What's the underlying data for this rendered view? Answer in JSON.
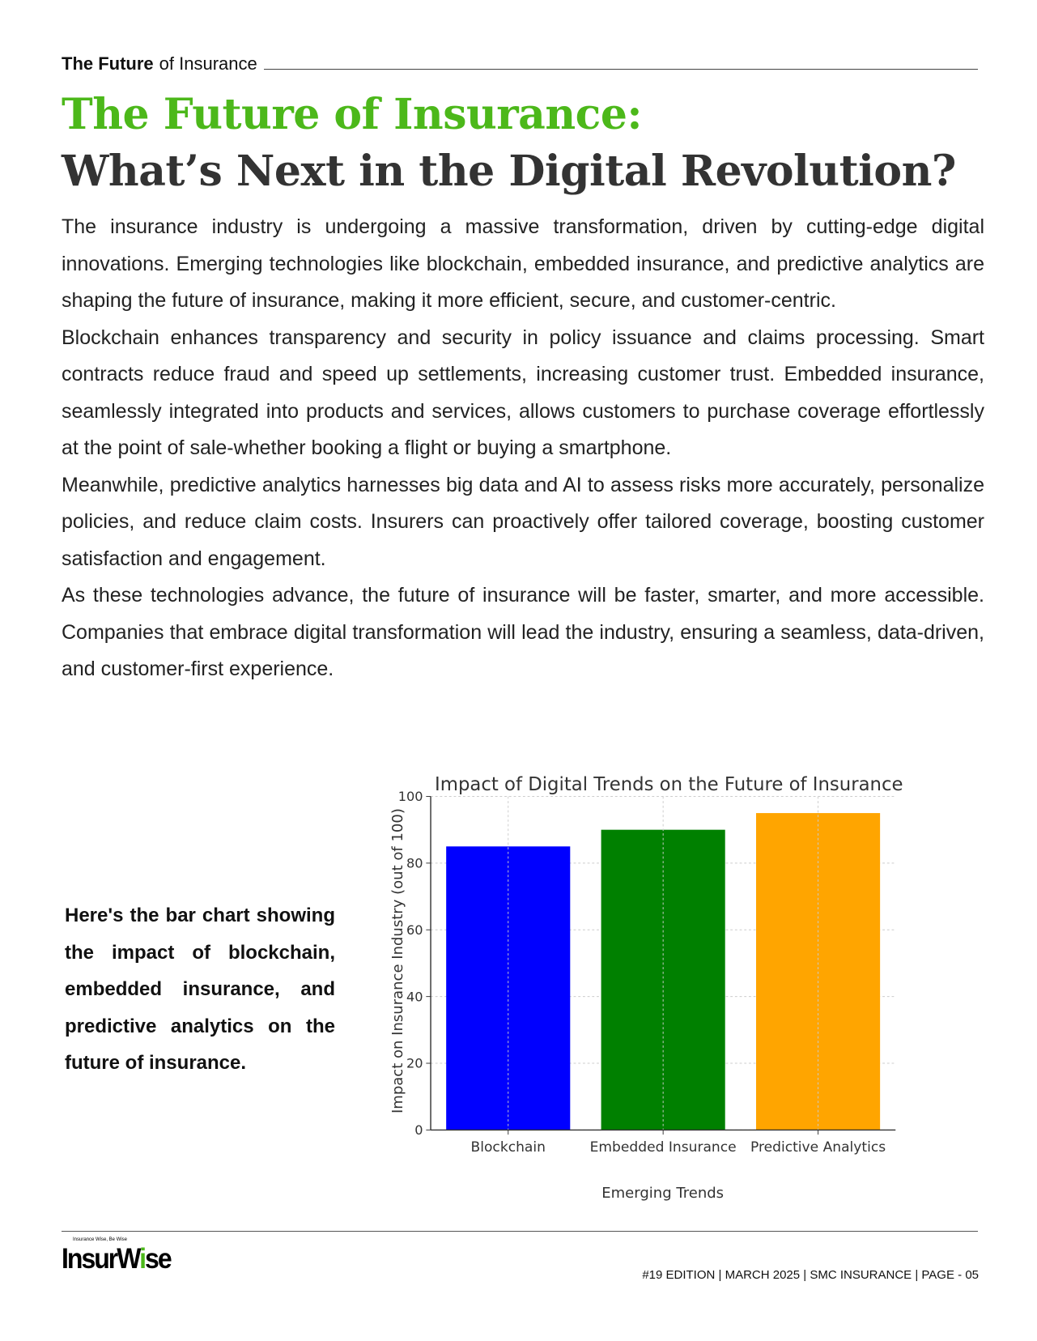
{
  "header": {
    "running_bold": "The Future",
    "running_light": "of Insurance"
  },
  "article": {
    "title_line1": "The Future of Insurance:",
    "title_line2": "What’s Next in the Digital Revolution?",
    "paragraphs": [
      "The insurance industry is undergoing a massive transformation, driven by cutting-edge digital innovations. Emerging technologies like blockchain, embedded insurance, and predictive analytics are shaping the future of insurance, making it more efficient, secure, and customer-centric.",
      "Blockchain enhances transparency and security in policy issuance and claims processing. Smart contracts reduce fraud and speed up settlements, increasing customer trust. Embedded insurance, seamlessly integrated into products and services, allows customers to purchase coverage effortlessly at the point of sale-whether booking a flight or buying a smartphone.",
      "Meanwhile, predictive analytics harnesses big data and AI to assess risks more accurately, personalize policies, and reduce claim costs. Insurers can proactively offer tailored coverage, boosting customer satisfaction and engagement.",
      "As these technologies advance, the future of insurance will be faster, smarter, and more accessible. Companies that embrace digital transformation will lead the industry, ensuring a seamless, data-driven, and customer-first experience."
    ],
    "caption": "Here's the bar chart showing the impact of blockchain, embedded insurance, and predictive analytics on the future of insurance."
  },
  "chart_data": {
    "type": "bar",
    "title": "Impact of Digital Trends on the Future of Insurance",
    "xlabel": "Emerging Trends",
    "ylabel": "Impact on Insurance Industry (out of 100)",
    "categories": [
      "Blockchain",
      "Embedded Insurance",
      "Predictive Analytics"
    ],
    "values": [
      85,
      90,
      95
    ],
    "colors": [
      "#0000ff",
      "#008000",
      "#ffa500"
    ],
    "ylim": [
      0,
      100
    ],
    "yticks": [
      0,
      20,
      40,
      60,
      80,
      100
    ],
    "grid": true,
    "legend": "none"
  },
  "footer": {
    "logo_tagline": "Insurance Wise, Be Wise",
    "logo_text_a": "InsurW",
    "logo_text_b": "i",
    "logo_text_c": "se",
    "edition": "#19 EDITION | MARCH 2025 | SMC INSURANCE | PAGE - 05"
  }
}
